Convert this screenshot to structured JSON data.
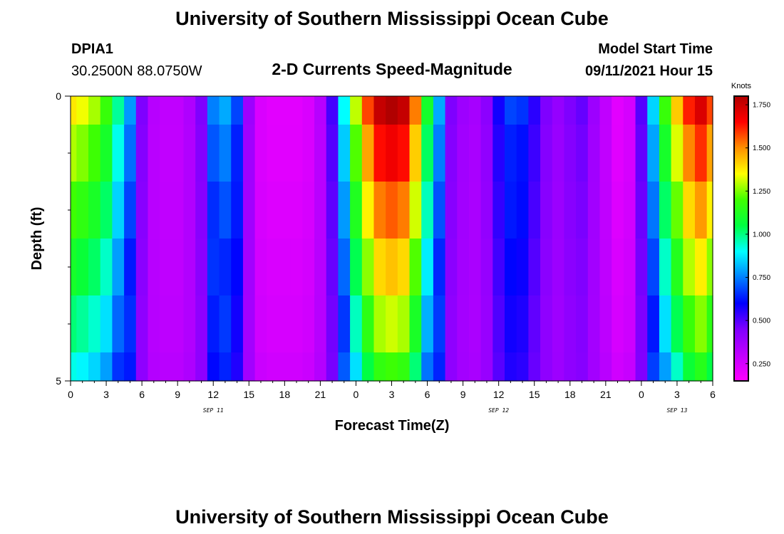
{
  "page": {
    "title_top": "University of Southern Mississippi Ocean Cube",
    "title_bottom": "University of Southern Mississippi Ocean Cube",
    "station_id": "DPIA1",
    "station_coords": "30.2500N  88.0750W",
    "center_title": "2-D Currents Speed-Magnitude",
    "model_start_label": "Model Start Time",
    "model_start_value": "09/11/2021 Hour 15"
  },
  "chart_data": {
    "type": "heatmap",
    "title": "2-D Currents Speed-Magnitude",
    "xlabel": "Forecast Time(Z)",
    "ylabel": "Depth (ft)",
    "xlim": [
      0,
      54
    ],
    "ylim": [
      0,
      5
    ],
    "x_tick_values": [
      0,
      3,
      6,
      9,
      12,
      15,
      18,
      21,
      24,
      27,
      30,
      33,
      36,
      39,
      42,
      45,
      48,
      51,
      54
    ],
    "x_tick_labels": [
      "0",
      "3",
      "6",
      "9",
      "12",
      "15",
      "18",
      "21",
      "0",
      "3",
      "6",
      "9",
      "12",
      "15",
      "18",
      "21",
      "0",
      "3",
      "6"
    ],
    "y_tick_values": [
      0,
      5
    ],
    "y_tick_labels": [
      "0",
      "5"
    ],
    "y_minor_ticks": [
      1,
      2,
      3,
      4
    ],
    "date_labels": [
      {
        "x": 12,
        "label": "SEP 11"
      },
      {
        "x": 36,
        "label": "SEP 12"
      },
      {
        "x": 51,
        "label": "SEP 13"
      }
    ],
    "colorbar": {
      "unit": "Knots",
      "min": 0.15,
      "max": 1.8,
      "ticks": [
        "1.750",
        "1.500",
        "1.250",
        "1.000",
        "0.750",
        "0.500",
        "0.250"
      ],
      "tick_values": [
        1.75,
        1.5,
        1.25,
        1.0,
        0.75,
        0.5,
        0.25
      ],
      "colors": [
        "#ff00ff",
        "#c000ff",
        "#7f00ff",
        "#0000ff",
        "#0080ff",
        "#00ffff",
        "#00ff40",
        "#40ff00",
        "#ffff00",
        "#ff9000",
        "#ff0000",
        "#b00000"
      ]
    },
    "hours": [
      0,
      1,
      2,
      3,
      4,
      5,
      6,
      7,
      8,
      9,
      10,
      11,
      12,
      13,
      14,
      15,
      16,
      17,
      18,
      19,
      20,
      21,
      22,
      23,
      24,
      25,
      26,
      27,
      28,
      29,
      30,
      31,
      32,
      33,
      34,
      35,
      36,
      37,
      38,
      39,
      40,
      41,
      42,
      43,
      44,
      45,
      46,
      47,
      48,
      49,
      50,
      51,
      52,
      53,
      54
    ],
    "depth_layers": [
      0,
      1,
      2,
      3,
      4,
      5
    ],
    "surface_speed": [
      1.38,
      1.34,
      1.28,
      1.18,
      0.98,
      0.78,
      0.45,
      0.32,
      0.3,
      0.3,
      0.34,
      0.45,
      0.75,
      0.8,
      0.68,
      0.38,
      0.24,
      0.22,
      0.22,
      0.22,
      0.24,
      0.32,
      0.52,
      0.9,
      1.3,
      1.58,
      1.76,
      1.8,
      1.76,
      1.52,
      1.1,
      0.8,
      0.45,
      0.38,
      0.36,
      0.42,
      0.58,
      0.68,
      0.66,
      0.55,
      0.45,
      0.4,
      0.45,
      0.48,
      0.38,
      0.3,
      0.22,
      0.25,
      0.5,
      0.85,
      1.18,
      1.42,
      1.62,
      1.72,
      1.58
    ],
    "depth_scale": [
      1.0,
      0.93,
      0.86,
      0.79,
      0.72,
      0.65
    ],
    "depth_floor": [
      0.35,
      0.38,
      0.42,
      0.46,
      0.5,
      0.55
    ],
    "depth_shift": [
      0.0,
      0.0,
      0.05,
      0.1,
      0.1,
      0.15
    ]
  }
}
